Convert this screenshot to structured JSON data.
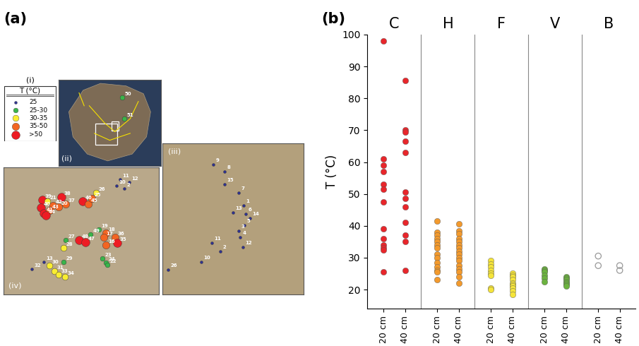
{
  "chart_data": [
    {
      "type": "map",
      "title": "(a)",
      "legend_label": "(i)",
      "legend_title": "T (°C)",
      "tick_labels": false,
      "classes": [
        {
          "label": "25",
          "color": "#2e3192"
        },
        {
          "label": "25-30",
          "color": "#39b54a"
        },
        {
          "label": "30-35",
          "color": "#f9ed32"
        },
        {
          "label": "35-50",
          "color": "#f26522"
        },
        {
          "label": ">50",
          "color": "#ed1c24"
        }
      ],
      "insets": [
        {
          "label": "(ii)",
          "xlim": [
            0,
            145
          ],
          "ylim": [
            122,
            0
          ],
          "points": [
            {
              "label": "50",
              "class": 1,
              "x": 90,
              "y": 25
            },
            {
              "label": "51",
              "class": 1,
              "x": 93,
              "y": 55
            }
          ]
        },
        {
          "label": "(iv)",
          "xlim": [
            0,
            220
          ],
          "ylim": [
            180,
            0
          ],
          "points": [
            {
              "label": "39",
              "class": 4,
              "x": 55,
              "y": 46
            },
            {
              "label": "21",
              "class": 2,
              "x": 62,
              "y": 48
            },
            {
              "label": "38",
              "class": 4,
              "x": 82,
              "y": 42
            },
            {
              "label": "40",
              "class": 4,
              "x": 53,
              "y": 57
            },
            {
              "label": "42",
              "class": 3,
              "x": 70,
              "y": 54
            },
            {
              "label": "20",
              "class": 3,
              "x": 78,
              "y": 56
            },
            {
              "label": "37",
              "class": 3,
              "x": 88,
              "y": 52
            },
            {
              "label": "41",
              "class": 4,
              "x": 57,
              "y": 65
            },
            {
              "label": "43",
              "class": 3,
              "x": 65,
              "y": 61
            },
            {
              "label": "44",
              "class": 4,
              "x": 60,
              "y": 68
            },
            {
              "label": "46",
              "class": 4,
              "x": 112,
              "y": 48
            },
            {
              "label": "45",
              "class": 3,
              "x": 120,
              "y": 52
            },
            {
              "label": "25",
              "class": 3,
              "x": 125,
              "y": 44
            },
            {
              "label": "26",
              "class": 2,
              "x": 131,
              "y": 36
            },
            {
              "label": "11",
              "class": 0,
              "x": 165,
              "y": 17
            },
            {
              "label": "12",
              "class": 0,
              "x": 178,
              "y": 21
            },
            {
              "label": "10",
              "class": 0,
              "x": 160,
              "y": 26
            },
            {
              "label": "2",
              "class": 0,
              "x": 171,
              "y": 30
            },
            {
              "label": "49",
              "class": 1,
              "x": 123,
              "y": 95
            },
            {
              "label": "48",
              "class": 4,
              "x": 107,
              "y": 103
            },
            {
              "label": "47",
              "class": 4,
              "x": 116,
              "y": 106
            },
            {
              "label": "27",
              "class": 1,
              "x": 88,
              "y": 103
            },
            {
              "label": "28",
              "class": 2,
              "x": 85,
              "y": 114
            },
            {
              "label": "19",
              "class": 1,
              "x": 135,
              "y": 88
            },
            {
              "label": "18",
              "class": 3,
              "x": 145,
              "y": 93
            },
            {
              "label": "17",
              "class": 3,
              "x": 142,
              "y": 99
            },
            {
              "label": "36",
              "class": 3,
              "x": 158,
              "y": 99
            },
            {
              "label": "35",
              "class": 4,
              "x": 161,
              "y": 107
            },
            {
              "label": "16",
              "class": 3,
              "x": 145,
              "y": 110
            },
            {
              "label": "29",
              "class": 1,
              "x": 85,
              "y": 134
            },
            {
              "label": "13",
              "class": 0,
              "x": 57,
              "y": 134
            },
            {
              "label": "32",
              "class": 0,
              "x": 40,
              "y": 144
            },
            {
              "label": "30",
              "class": 2,
              "x": 65,
              "y": 139
            },
            {
              "label": "31",
              "class": 2,
              "x": 72,
              "y": 147
            },
            {
              "label": "33",
              "class": 2,
              "x": 78,
              "y": 152
            },
            {
              "label": "34",
              "class": 2,
              "x": 87,
              "y": 155
            },
            {
              "label": "23",
              "class": 1,
              "x": 140,
              "y": 129
            },
            {
              "label": "24",
              "class": 1,
              "x": 145,
              "y": 135
            },
            {
              "label": "22",
              "class": 1,
              "x": 147,
              "y": 138
            }
          ]
        },
        {
          "label": "(iii)",
          "xlim": [
            0,
            200
          ],
          "ylim": [
            214,
            0
          ],
          "points": [
            {
              "label": "9",
              "class": 0,
              "x": 72,
              "y": 30
            },
            {
              "label": "8",
              "class": 0,
              "x": 88,
              "y": 40
            },
            {
              "label": "15",
              "class": 0,
              "x": 88,
              "y": 58
            },
            {
              "label": "7",
              "class": 0,
              "x": 108,
              "y": 70
            },
            {
              "label": "1",
              "class": 0,
              "x": 115,
              "y": 88
            },
            {
              "label": "13",
              "class": 0,
              "x": 100,
              "y": 98
            },
            {
              "label": "6",
              "class": 0,
              "x": 118,
              "y": 100
            },
            {
              "label": "14",
              "class": 0,
              "x": 124,
              "y": 106
            },
            {
              "label": "3",
              "class": 0,
              "x": 108,
              "y": 124
            },
            {
              "label": "5",
              "class": 0,
              "x": 116,
              "y": 116
            },
            {
              "label": "4",
              "class": 0,
              "x": 110,
              "y": 133
            },
            {
              "label": "11",
              "class": 0,
              "x": 70,
              "y": 141
            },
            {
              "label": "2",
              "class": 0,
              "x": 82,
              "y": 153
            },
            {
              "label": "12",
              "class": 0,
              "x": 114,
              "y": 147
            },
            {
              "label": "10",
              "class": 0,
              "x": 55,
              "y": 168
            },
            {
              "label": "26",
              "class": 0,
              "x": 8,
              "y": 179
            }
          ]
        }
      ]
    },
    {
      "type": "strip",
      "title": "(b)",
      "y_label": "T (°C)",
      "categories": [
        "20 cm",
        "40 cm"
      ],
      "ylim": [
        14,
        100
      ],
      "yticks": [
        20,
        30,
        40,
        50,
        60,
        70,
        80,
        90,
        100
      ],
      "series": [
        {
          "name": "C",
          "color": "#e8262b",
          "marker": "filled",
          "values": [
            [
              98,
              61,
              59,
              57,
              53,
              51.5,
              47.5,
              39,
              36,
              34,
              33,
              32.5,
              25.5
            ],
            [
              85.5,
              70,
              69.5,
              66.5,
              63,
              50.5,
              48.5,
              46,
              41,
              37,
              35,
              26
            ]
          ]
        },
        {
          "name": "H",
          "color": "#f39a2d",
          "marker": "filled",
          "values": [
            [
              41.5,
              38,
              37,
              36,
              35,
              34,
              33,
              31,
              30,
              28.5,
              27,
              26,
              25.5,
              23
            ],
            [
              40.5,
              38.5,
              37.5,
              36,
              35,
              34,
              33,
              32,
              31,
              30,
              29,
              27.5,
              26.5,
              25.5,
              24,
              22
            ]
          ]
        },
        {
          "name": "F",
          "color": "#f5e43a",
          "marker": "filled",
          "values": [
            [
              29,
              28,
              27,
              26,
              25,
              24.5,
              20.5,
              20
            ],
            [
              25,
              24.5,
              24,
              23,
              22,
              21.5,
              21,
              20.5,
              19.5,
              18.5
            ]
          ]
        },
        {
          "name": "V",
          "color": "#6cb33f",
          "marker": "filled",
          "values": [
            [
              26.5,
              26,
              25.5,
              24.5,
              23.5,
              22.5
            ],
            [
              24,
              23.5,
              23,
              22.5,
              22,
              21.5,
              21
            ]
          ]
        },
        {
          "name": "B",
          "color": "#999999",
          "marker": "open",
          "values": [
            [
              30.5,
              27.5
            ],
            [
              27.5,
              26
            ]
          ]
        }
      ]
    }
  ]
}
